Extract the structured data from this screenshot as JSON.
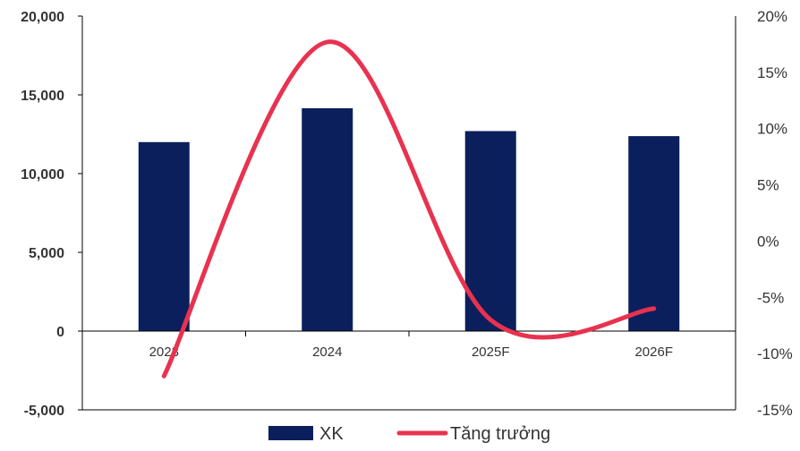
{
  "chart_data": {
    "type": "bar",
    "categories": [
      "2023",
      "2024",
      "2025F",
      "2026F"
    ],
    "series": [
      {
        "name": "XK",
        "type": "bar",
        "axis": "left",
        "color": "#0b1f5c",
        "values": [
          12000,
          14150,
          12700,
          12380
        ]
      },
      {
        "name": "Tăng trưởng",
        "type": "line",
        "axis": "right",
        "color": "#e8324f",
        "smooth": true,
        "values": [
          -12,
          17.7,
          -7,
          -6
        ]
      }
    ],
    "y_left": {
      "min": -5000,
      "max": 20000,
      "ticks": [
        20000,
        15000,
        10000,
        5000,
        0,
        -5000
      ],
      "tick_labels": [
        "20,000",
        "15,000",
        "10,000",
        "5,000",
        "0",
        "-5,000"
      ]
    },
    "y_right": {
      "min": -15,
      "max": 20,
      "ticks": [
        20,
        15,
        10,
        5,
        0,
        -5,
        -10,
        -15
      ],
      "tick_labels": [
        "20%",
        "15%",
        "10%",
        "5%",
        "0%",
        "-5%",
        "-10%",
        "-15%"
      ]
    },
    "grid": false,
    "legend": {
      "position": "bottom",
      "items": [
        {
          "label": "XK",
          "symbol": "bar",
          "color": "#0b1f5c"
        },
        {
          "label": "Tăng trưởng",
          "symbol": "line",
          "color": "#e8324f"
        }
      ]
    }
  }
}
